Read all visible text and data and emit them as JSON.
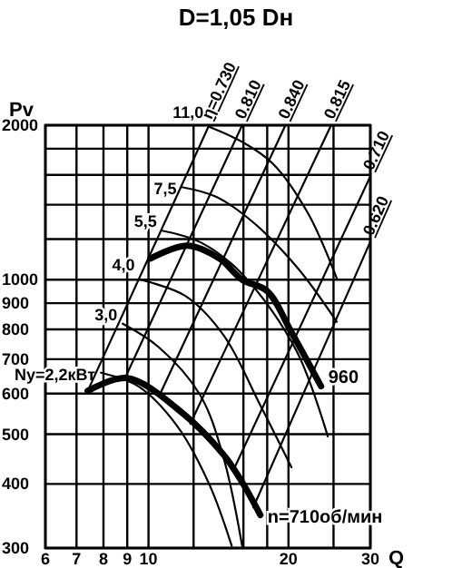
{
  "chart_data": {
    "type": "line",
    "title": "D=1,05 Dн",
    "xlabel": "Q",
    "ylabel": "Pv",
    "log": "xy",
    "grid": true,
    "xlim": [
      6,
      30
    ],
    "ylim": [
      300,
      2000
    ],
    "xticks": [
      6,
      7,
      8,
      9,
      10,
      {
        "value": 12.5,
        "label": null
      },
      {
        "value": 16,
        "label": null
      },
      {
        "value": 18,
        "label": null
      },
      20,
      {
        "value": 25,
        "label": null
      },
      30
    ],
    "yticks": [
      300,
      400,
      500,
      600,
      700,
      800,
      900,
      1000,
      {
        "value": 1200,
        "label": null
      },
      {
        "value": 1400,
        "label": null
      },
      {
        "value": 1600,
        "label": null
      },
      {
        "value": 1800,
        "label": null
      },
      2000
    ],
    "series": [
      {
        "name": "960",
        "color": "#000000",
        "x": [
          10.1,
          12.1,
          14.2,
          15.9,
          18.0,
          20.3,
          23.5
        ],
        "values": [
          1100,
          1165,
          1100,
          1000,
          950,
          790,
          620
        ]
      },
      {
        "name": "n=710об/мин",
        "color": "#000000",
        "x": [
          7.4,
          9.0,
          11.8,
          14.5,
          15.9,
          17.4
        ],
        "values": [
          607,
          643,
          551,
          456,
          403,
          348
        ]
      },
      {
        "name": "11,0",
        "color": "#000000",
        "x": [
          25.4,
          22,
          18.5,
          16,
          13.5
        ],
        "values": [
          1007,
          1350,
          1684,
          1850,
          1985
        ]
      },
      {
        "name": "7,5",
        "color": "#000000",
        "x": [
          25.4,
          21,
          16.9,
          14,
          11.8
        ],
        "values": [
          828,
          1050,
          1287,
          1450,
          1515
        ]
      },
      {
        "name": "5,5",
        "color": "#000000",
        "x": [
          24.3,
          20.8,
          16,
          13,
          10.7
        ],
        "values": [
          495,
          727,
          1020,
          1180,
          1246
        ]
      },
      {
        "name": "4,0",
        "color": "#000000",
        "x": [
          20.3,
          17.4,
          14.5,
          12,
          9.6
        ],
        "values": [
          431,
          569,
          780,
          930,
          1000
        ]
      },
      {
        "name": "3,0",
        "color": "#000000",
        "x": [
          15.9,
          14.5,
          12.9,
          10.5,
          8.8
        ],
        "values": [
          303,
          450,
          597,
          740,
          821
        ]
      },
      {
        "name": "Ny=2,2кВт",
        "color": "#000000",
        "x": [
          15.1,
          13.5,
          11.5,
          9.5,
          7.9
        ],
        "values": [
          303,
          400,
          520,
          620,
          659
        ]
      },
      {
        "name": "η=0.730",
        "color": "#000000",
        "x": [
          7.4,
          13.5
        ],
        "values": [
          607,
          2000
        ]
      },
      {
        "name": "0.810",
        "color": "#000000",
        "x": [
          8.9,
          15.9
        ],
        "values": [
          643,
          2000
        ]
      },
      {
        "name": "0.840",
        "color": "#000000",
        "x": [
          10.6,
          19.7
        ],
        "values": [
          600,
          2000
        ]
      },
      {
        "name": "0.815",
        "color": "#000000",
        "x": [
          12.3,
          24.7
        ],
        "values": [
          524,
          2000
        ]
      },
      {
        "name": "0.710",
        "color": "#000000",
        "x": [
          15.2,
          30
        ],
        "values": [
          424,
          1591
        ]
      },
      {
        "name": "0.620",
        "color": "#000000",
        "x": [
          16.8,
          30
        ],
        "values": [
          360,
          1186
        ]
      }
    ]
  }
}
